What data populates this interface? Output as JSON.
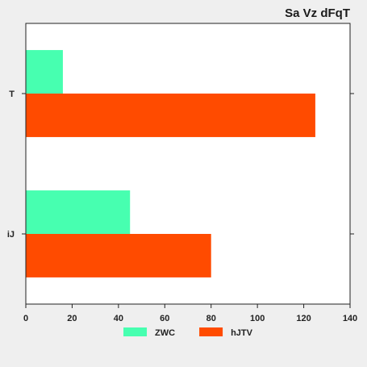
{
  "chart_data": {
    "type": "bar",
    "orientation": "horizontal",
    "title": "Sa Vz dFqT",
    "categories": [
      "T",
      "iJ"
    ],
    "series": [
      {
        "name": "ZWC",
        "values": [
          16,
          45
        ],
        "color": "#47ffb0"
      },
      {
        "name": "hJTV",
        "values": [
          125,
          80
        ],
        "color": "#ff4b00"
      }
    ],
    "xlabel": "",
    "ylabel": "",
    "xlim": [
      0,
      140
    ],
    "xticks": [
      0,
      20,
      40,
      60,
      80,
      100,
      120,
      140
    ],
    "grid": false,
    "legend_position": "bottom"
  }
}
